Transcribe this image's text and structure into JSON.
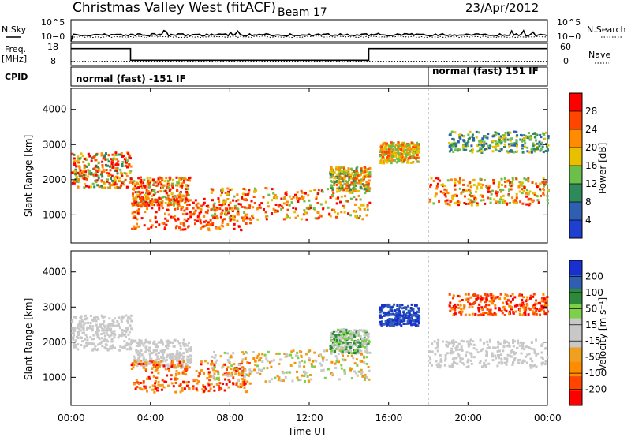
{
  "header": {
    "title": "Christmas Valley West (fitACF)",
    "beam": "Beam 17",
    "date": "23/Apr/2012"
  },
  "labels": {
    "nsky": "N.Sky",
    "nsearch": "N.Search",
    "freq": "Freq.",
    "freq_unit": "[MHz]",
    "nave": "Nave",
    "cpid": "CPID",
    "mode_1": "normal (fast) -151 IF",
    "mode_2": "normal (fast) 151 IF",
    "slant_range": "Slant Range [km]",
    "time_axis": "Time UT",
    "power_bar": "Power [dB]",
    "velocity_bar": "Velocity [m s⁻¹]"
  },
  "colors": {
    "power": [
      "#1f3fd0",
      "#2f5fb0",
      "#2e8a5a",
      "#6cbf4a",
      "#e8c000",
      "#ff8c00",
      "#ff4500",
      "#ff0000"
    ],
    "velocity": [
      "#ff0000",
      "#ff4500",
      "#ff8c00",
      "#f0a020",
      "#c8c8c8",
      "#c8c8c8",
      "#7ed04a",
      "#2e8a3a",
      "#2f5fb0",
      "#1a2fd0"
    ]
  },
  "chart_data": [
    {
      "type": "line",
      "name": "noise-panel",
      "left_axis": {
        "label": "N.Sky",
        "ticks": [
          "10^5",
          "10−0"
        ]
      },
      "right_axis": {
        "label": "N.Search",
        "ticks": [
          "10^5",
          "10−0"
        ]
      },
      "series": [
        {
          "name": "N.Sky",
          "style": "solid",
          "level": 0.35
        },
        {
          "name": "N.Search",
          "style": "dotted",
          "level": 0.25
        }
      ]
    },
    {
      "type": "line",
      "name": "frequency-panel",
      "left_axis": {
        "label": "Freq. [MHz]",
        "ticks": [
          18,
          8
        ],
        "ylim": [
          8,
          18
        ]
      },
      "right_axis": {
        "label": "Nave",
        "ticks": [
          60,
          0
        ],
        "ylim": [
          0,
          60
        ]
      },
      "series": [
        {
          "name": "Freq",
          "style": "solid",
          "x": [
            "00:00",
            "03:00",
            "03:00",
            "15:00",
            "15:00",
            "24:00"
          ],
          "y": [
            16,
            16,
            10.5,
            10.5,
            16,
            16
          ]
        },
        {
          "name": "Nave",
          "style": "dotted",
          "level": 12
        }
      ]
    },
    {
      "type": "table",
      "name": "cpid-panel",
      "segments": [
        {
          "start": "00:00",
          "end": "18:00",
          "label": "normal (fast) -151 IF"
        },
        {
          "start": "18:00",
          "end": "24:00",
          "label": "normal (fast) 151 IF"
        }
      ]
    },
    {
      "type": "heatmap",
      "name": "power-panel",
      "ylabel": "Slant Range [km]",
      "ylim": [
        200,
        4600
      ],
      "yticks": [
        1000,
        2000,
        3000,
        4000
      ],
      "xlim": [
        "00:00",
        "24:00"
      ],
      "xticks": [
        "00:00",
        "04:00",
        "08:00",
        "12:00",
        "16:00",
        "20:00",
        "00:00"
      ],
      "colorbar": {
        "label": "Power [dB]",
        "ticks": [
          4,
          8,
          12,
          16,
          20,
          24,
          28
        ],
        "range": [
          0,
          32
        ]
      }
    },
    {
      "type": "heatmap",
      "name": "velocity-panel",
      "ylabel": "Slant Range [km]",
      "ylim": [
        200,
        4600
      ],
      "yticks": [
        1000,
        2000,
        3000,
        4000
      ],
      "xlim": [
        "00:00",
        "24:00"
      ],
      "xticks": [
        "00:00",
        "04:00",
        "08:00",
        "12:00",
        "16:00",
        "20:00",
        "00:00"
      ],
      "xlabel": "Time UT",
      "colorbar": {
        "label": "Velocity [m s⁻¹]",
        "ticks": [
          200,
          100,
          50,
          15,
          -15,
          -50,
          -100,
          -200
        ]
      }
    }
  ]
}
